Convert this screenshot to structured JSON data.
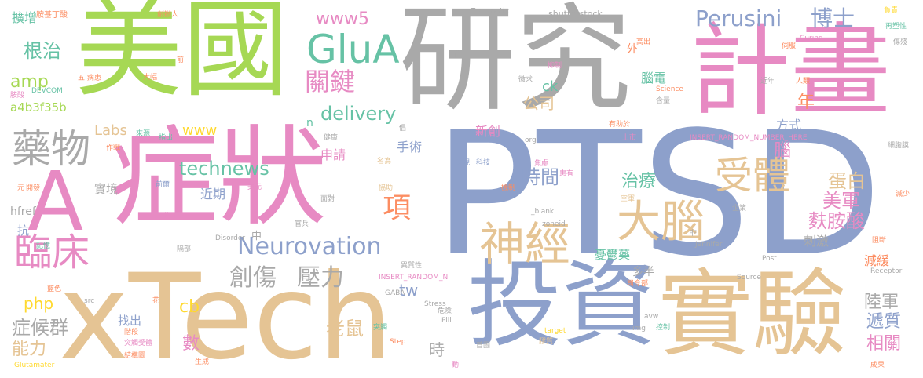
{
  "words": [
    {
      "text": "研究",
      "color": "gray"
    },
    {
      "text": "計畫",
      "color": "pink"
    },
    {
      "text": "美國",
      "color": "green"
    },
    {
      "text": "PTSD",
      "color": "blue"
    },
    {
      "text": "A",
      "color": "pink"
    },
    {
      "text": "症狀",
      "color": "pink"
    },
    {
      "text": "xTech",
      "color": "tan"
    },
    {
      "text": "投資",
      "color": "blue"
    },
    {
      "text": "實驗",
      "color": "tan"
    },
    {
      "text": "GluA",
      "color": "teal"
    },
    {
      "text": "藥物",
      "color": "gray"
    },
    {
      "text": "受體",
      "color": "tan"
    },
    {
      "text": "大腦",
      "color": "tan"
    },
    {
      "text": "神經",
      "color": "tan"
    },
    {
      "text": "臨床",
      "color": "pink"
    },
    {
      "text": "Perusini",
      "color": "blue"
    },
    {
      "text": "博士",
      "color": "blue"
    },
    {
      "text": "關鍵",
      "color": "pink"
    },
    {
      "text": "項",
      "color": "orange"
    },
    {
      "text": "創傷",
      "color": "gray"
    },
    {
      "text": "壓力",
      "color": "gray"
    },
    {
      "text": "Neurovation",
      "color": "blue"
    },
    {
      "text": "www5",
      "color": "pink"
    },
    {
      "text": "technews",
      "color": "teal"
    },
    {
      "text": "delivery",
      "color": "teal"
    },
    {
      "text": "根治",
      "color": "teal"
    },
    {
      "text": "amp",
      "color": "green"
    },
    {
      "text": "a4b3f35b",
      "color": "green"
    },
    {
      "text": "Labs",
      "color": "tan"
    },
    {
      "text": "www",
      "color": "yellow"
    },
    {
      "text": "公司",
      "color": "tan"
    },
    {
      "text": "時間",
      "color": "blue"
    },
    {
      "text": "治療",
      "color": "teal"
    },
    {
      "text": "蛋白",
      "color": "tan"
    },
    {
      "text": "美軍",
      "color": "pink"
    },
    {
      "text": "麩胺酸",
      "color": "pink"
    },
    {
      "text": "老鼠",
      "color": "tan"
    },
    {
      "text": "症候群",
      "color": "gray"
    },
    {
      "text": "能力",
      "color": "tan"
    },
    {
      "text": "php",
      "color": "yellow"
    },
    {
      "text": "cb",
      "color": "yellow"
    },
    {
      "text": "tw",
      "color": "blue"
    },
    {
      "text": "陸軍",
      "color": "gray"
    },
    {
      "text": "遞質",
      "color": "blue"
    },
    {
      "text": "相關",
      "color": "pink"
    },
    {
      "text": "年",
      "color": "orange"
    },
    {
      "text": "腦",
      "color": "pink"
    },
    {
      "text": "數",
      "color": "pink"
    },
    {
      "text": "時",
      "color": "gray"
    },
    {
      "text": "減緩",
      "color": "orange"
    },
    {
      "text": "刺激",
      "color": "gray"
    },
    {
      "text": "憂鬱藥",
      "color": "teal"
    },
    {
      "text": "多半",
      "color": "gray"
    },
    {
      "text": "腦電",
      "color": "teal"
    },
    {
      "text": "方式",
      "color": "blue"
    },
    {
      "text": "申請",
      "color": "pink"
    },
    {
      "text": "新創",
      "color": "pink"
    },
    {
      "text": "手術",
      "color": "blue"
    },
    {
      "text": "實境",
      "color": "gray"
    },
    {
      "text": "近期",
      "color": "blue"
    },
    {
      "text": "找出",
      "color": "blue"
    },
    {
      "text": "hfref",
      "color": "gray"
    },
    {
      "text": "抗",
      "color": "blue"
    },
    {
      "text": "ck",
      "color": "teal"
    },
    {
      "text": "中",
      "color": "gray"
    },
    {
      "text": "n",
      "color": "teal"
    },
    {
      "text": "外",
      "color": "orange"
    },
    {
      "text": "擴增",
      "color": "teal"
    },
    {
      "text": "Traumatic",
      "color": "gray"
    },
    {
      "text": "shutterstock",
      "color": "gray"
    },
    {
      "text": "負責",
      "color": "yellow"
    },
    {
      "text": "再塑性",
      "color": "teal"
    },
    {
      "text": "胺基丁酸",
      "color": "orange"
    },
    {
      "text": "創辦人",
      "color": "orange"
    },
    {
      "text": "五 病患",
      "color": "orange"
    },
    {
      "text": "DEVCOM",
      "color": "teal"
    },
    {
      "text": "胺酸",
      "color": "pink"
    },
    {
      "text": "大幅",
      "color": "orange"
    },
    {
      "text": "前",
      "color": "orange"
    },
    {
      "text": "作用",
      "color": "gray"
    },
    {
      "text": "抑制",
      "color": "pink"
    },
    {
      "text": "高出",
      "color": "orange"
    },
    {
      "text": "伺服",
      "color": "orange"
    },
    {
      "text": "Curing",
      "color": "pink"
    },
    {
      "text": "傷殘",
      "color": "gray"
    },
    {
      "text": "人類",
      "color": "orange"
    },
    {
      "text": "近年",
      "color": "gray"
    },
    {
      "text": "含量",
      "color": "gray"
    },
    {
      "text": "Science",
      "color": "orange"
    },
    {
      "text": "微求",
      "color": "gray"
    },
    {
      "text": "有助於",
      "color": "orange"
    },
    {
      "text": "上市",
      "color": "pink"
    },
    {
      "text": "INSERT_RANDOM_NUMBER_HERE",
      "color": "pink"
    },
    {
      "text": "細胞膜",
      "color": "gray"
    },
    {
      "text": "作戰",
      "color": "orange"
    },
    {
      "text": "來源",
      "color": "teal"
    },
    {
      "text": "指出",
      "color": "teal"
    },
    {
      "text": "健康",
      "color": "gray"
    },
    {
      "text": "名為",
      "color": "tan"
    },
    {
      "text": "org",
      "color": "gray"
    },
    {
      "text": "焦慮",
      "color": "pink"
    },
    {
      "text": "患有",
      "color": "pink"
    },
    {
      "text": "發現",
      "color": "blue"
    },
    {
      "text": "科技",
      "color": "blue"
    },
    {
      "text": "協助",
      "color": "tan"
    },
    {
      "text": "機制",
      "color": "orange"
    },
    {
      "text": "企業",
      "color": "gray"
    },
    {
      "text": "減少",
      "color": "orange"
    },
    {
      "text": "元",
      "color": "orange"
    },
    {
      "text": "開發",
      "color": "orange"
    },
    {
      "text": "前爾",
      "color": "blue"
    },
    {
      "text": "美元",
      "color": "pink"
    },
    {
      "text": "面對",
      "color": "gray"
    },
    {
      "text": "空軍",
      "color": "tan"
    },
    {
      "text": "_blank",
      "color": "gray"
    },
    {
      "text": "zoneid",
      "color": "gray"
    },
    {
      "text": "旗下",
      "color": "pink"
    },
    {
      "text": "Disorder",
      "color": "gray"
    },
    {
      "text": "官兵",
      "color": "gray"
    },
    {
      "text": "非",
      "color": "gray"
    },
    {
      "text": "Jennifer",
      "color": "gray"
    },
    {
      "text": "阻斷",
      "color": "orange"
    },
    {
      "text": "記憶",
      "color": "teal"
    },
    {
      "text": "隔部",
      "color": "gray"
    },
    {
      "text": "Post",
      "color": "gray"
    },
    {
      "text": "INSERT_RANDOM_N",
      "color": "pink"
    },
    {
      "text": "異質性",
      "color": "gray"
    },
    {
      "text": "Receptor",
      "color": "gray"
    },
    {
      "text": "司令部",
      "color": "orange"
    },
    {
      "text": "Source",
      "color": "gray"
    },
    {
      "text": "藍色",
      "color": "orange"
    },
    {
      "text": "src",
      "color": "gray"
    },
    {
      "text": "花",
      "color": "orange"
    },
    {
      "text": "Stress",
      "color": "gray"
    },
    {
      "text": "危險",
      "color": "gray"
    },
    {
      "text": "Pill",
      "color": "gray"
    },
    {
      "text": "avw",
      "color": "gray"
    },
    {
      "text": "階段",
      "color": "orange"
    },
    {
      "text": "突觸",
      "color": "teal"
    },
    {
      "text": "img",
      "color": "gray"
    },
    {
      "text": "控制",
      "color": "teal"
    },
    {
      "text": "target",
      "color": "yellow"
    },
    {
      "text": "突觸受體",
      "color": "pink"
    },
    {
      "text": "首圖",
      "color": "gray"
    },
    {
      "text": "Step",
      "color": "orange"
    },
    {
      "text": "膠質",
      "color": "tan"
    },
    {
      "text": "結構圖",
      "color": "orange"
    },
    {
      "text": "生成",
      "color": "orange"
    },
    {
      "text": "GABA",
      "color": "gray"
    },
    {
      "text": "Glutamater",
      "color": "yellow"
    },
    {
      "text": "動",
      "color": "pink"
    },
    {
      "text": "成果",
      "color": "orange"
    },
    {
      "text": "倡",
      "color": "gray"
    }
  ]
}
